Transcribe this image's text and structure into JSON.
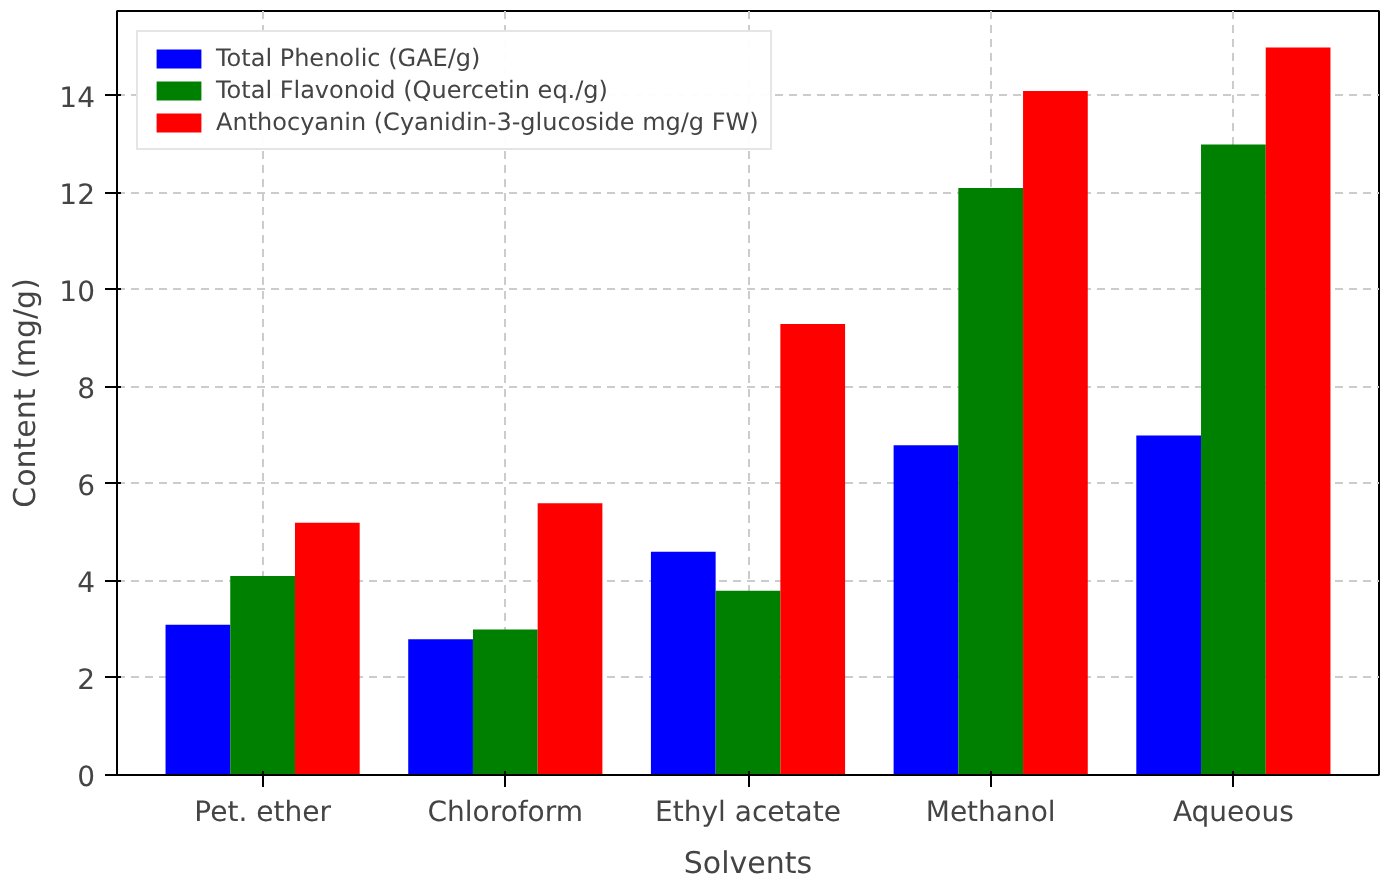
{
  "chart_data": {
    "type": "bar",
    "xlabel": "Solvents",
    "ylabel": "Content (mg/g)",
    "categories": [
      "Pet. ether",
      "Chloroform",
      "Ethyl acetate",
      "Methanol",
      "Aqueous"
    ],
    "series": [
      {
        "name": "Total Phenolic (GAE/g)",
        "color": "#0000ff",
        "values": [
          3.1,
          2.8,
          4.6,
          6.8,
          7.0
        ]
      },
      {
        "name": "Total Flavonoid (Quercetin eq./g)",
        "color": "#008000",
        "values": [
          4.1,
          3.0,
          3.8,
          12.1,
          13.0
        ]
      },
      {
        "name": "Anthocyanin (Cyanidin-3-glucoside mg/g FW)",
        "color": "#ff0000",
        "values": [
          5.2,
          5.6,
          9.3,
          14.1,
          15.0
        ]
      }
    ],
    "ylim": [
      0,
      15.75
    ],
    "yticks": [
      0,
      2,
      4,
      6,
      8,
      10,
      12,
      14
    ],
    "grid": true,
    "legend": "top left"
  }
}
